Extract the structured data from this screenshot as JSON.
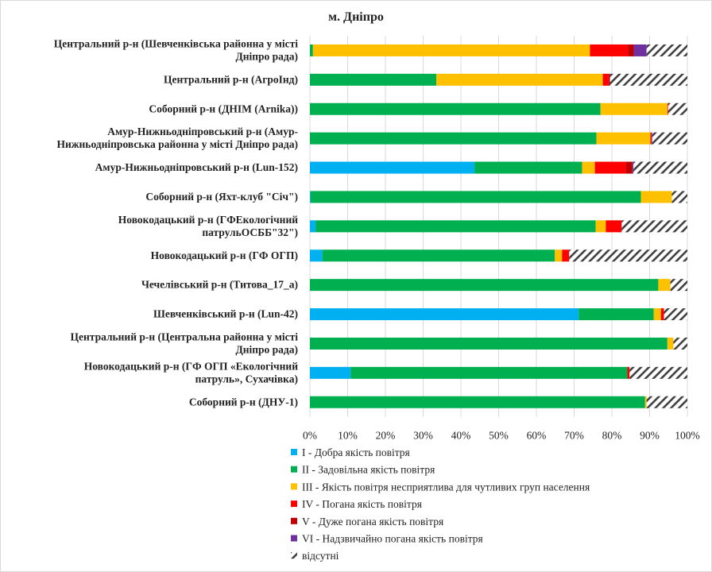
{
  "chart_data": {
    "type": "bar",
    "orientation": "horizontal",
    "stacked": "percent",
    "title": "м. Дніпро",
    "xlabel": "",
    "ylabel": "",
    "xlim": [
      0,
      100
    ],
    "x_ticks": [
      "0%",
      "10%",
      "20%",
      "30%",
      "40%",
      "50%",
      "60%",
      "70%",
      "80%",
      "90%",
      "100%"
    ],
    "grid": true,
    "legend_position": "bottom-left",
    "categories": [
      [
        "Центральний р-н (Шевченківська районна у місті",
        "Дніпро рада)"
      ],
      [
        "Центральний р-н (АгроІнд)"
      ],
      [
        "Соборний р-н (ДНІМ (Arnika))"
      ],
      [
        "Амур-Нижньодніпровський  р-н (Амур-",
        "Нижньодніпровська районна у місті Дніпро рада)"
      ],
      [
        "Амур-Нижньодніпровський  р-н (Lun-152)"
      ],
      [
        "Соборний р-н (Яхт-клуб \"Січ\")"
      ],
      [
        "Новокодацький р-н (ГФЕкологічний",
        "патрульОСББ\"32\")"
      ],
      [
        "Новокодацький р-н (ГФ ОГП)"
      ],
      [
        "Чечелівський р-н (Титова_17_а)"
      ],
      [
        "Шевченківський р-н (Lun-42)"
      ],
      [
        "Центральний р-н (Центральна районна у місті",
        "Дніпро рада)"
      ],
      [
        "Новокодацький р-н (ГФ ОГП «Екологічний",
        "патруль», Сухачівка)"
      ],
      [
        "Соборний р-н (ДНУ-1)"
      ]
    ],
    "series": [
      {
        "name": "I - Добра якість  повітря",
        "color": "#00b0f0",
        "values": [
          0,
          0,
          0,
          0,
          43.6,
          0.2,
          1.5,
          3.3,
          0,
          71.2,
          0,
          10.8,
          0
        ]
      },
      {
        "name": "II - Задовільна якість  повітря",
        "color": "#00b050",
        "values": [
          0.8,
          33.5,
          77.0,
          75.9,
          28.5,
          87.5,
          74.2,
          61.6,
          92.3,
          19.9,
          94.7,
          73.3,
          88.8
        ]
      },
      {
        "name": "III - Якість повітря несприятлива для чутливих груп населення",
        "color": "#ffc000",
        "values": [
          73.4,
          44.1,
          17.7,
          14.3,
          3.4,
          8.2,
          2.7,
          1.9,
          3.2,
          1.9,
          1.6,
          0,
          0.4
        ]
      },
      {
        "name": "IV - Погана якість  повітря",
        "color": "#ff0000",
        "values": [
          10.1,
          1.5,
          0.2,
          0.3,
          8.2,
          0,
          4.2,
          1.9,
          0,
          0.8,
          0,
          0.6,
          0
        ]
      },
      {
        "name": "V - Дуже погана якість  повітря",
        "color": "#c00000",
        "values": [
          1.5,
          0.4,
          0,
          0,
          1.7,
          0,
          0,
          0,
          0,
          0,
          0,
          0,
          0
        ]
      },
      {
        "name": "VI - Надзвичайно погана якість  повітря",
        "color": "#7030a0",
        "values": [
          3.4,
          0,
          0,
          0.2,
          0.3,
          0,
          0,
          0,
          0,
          0,
          0,
          0,
          0
        ]
      },
      {
        "name": "відсутні",
        "color": "hatch",
        "values": [
          10.8,
          20.5,
          5.1,
          9.3,
          14.3,
          4.1,
          17.4,
          31.3,
          4.5,
          6.2,
          3.7,
          15.3,
          10.8
        ]
      }
    ]
  }
}
